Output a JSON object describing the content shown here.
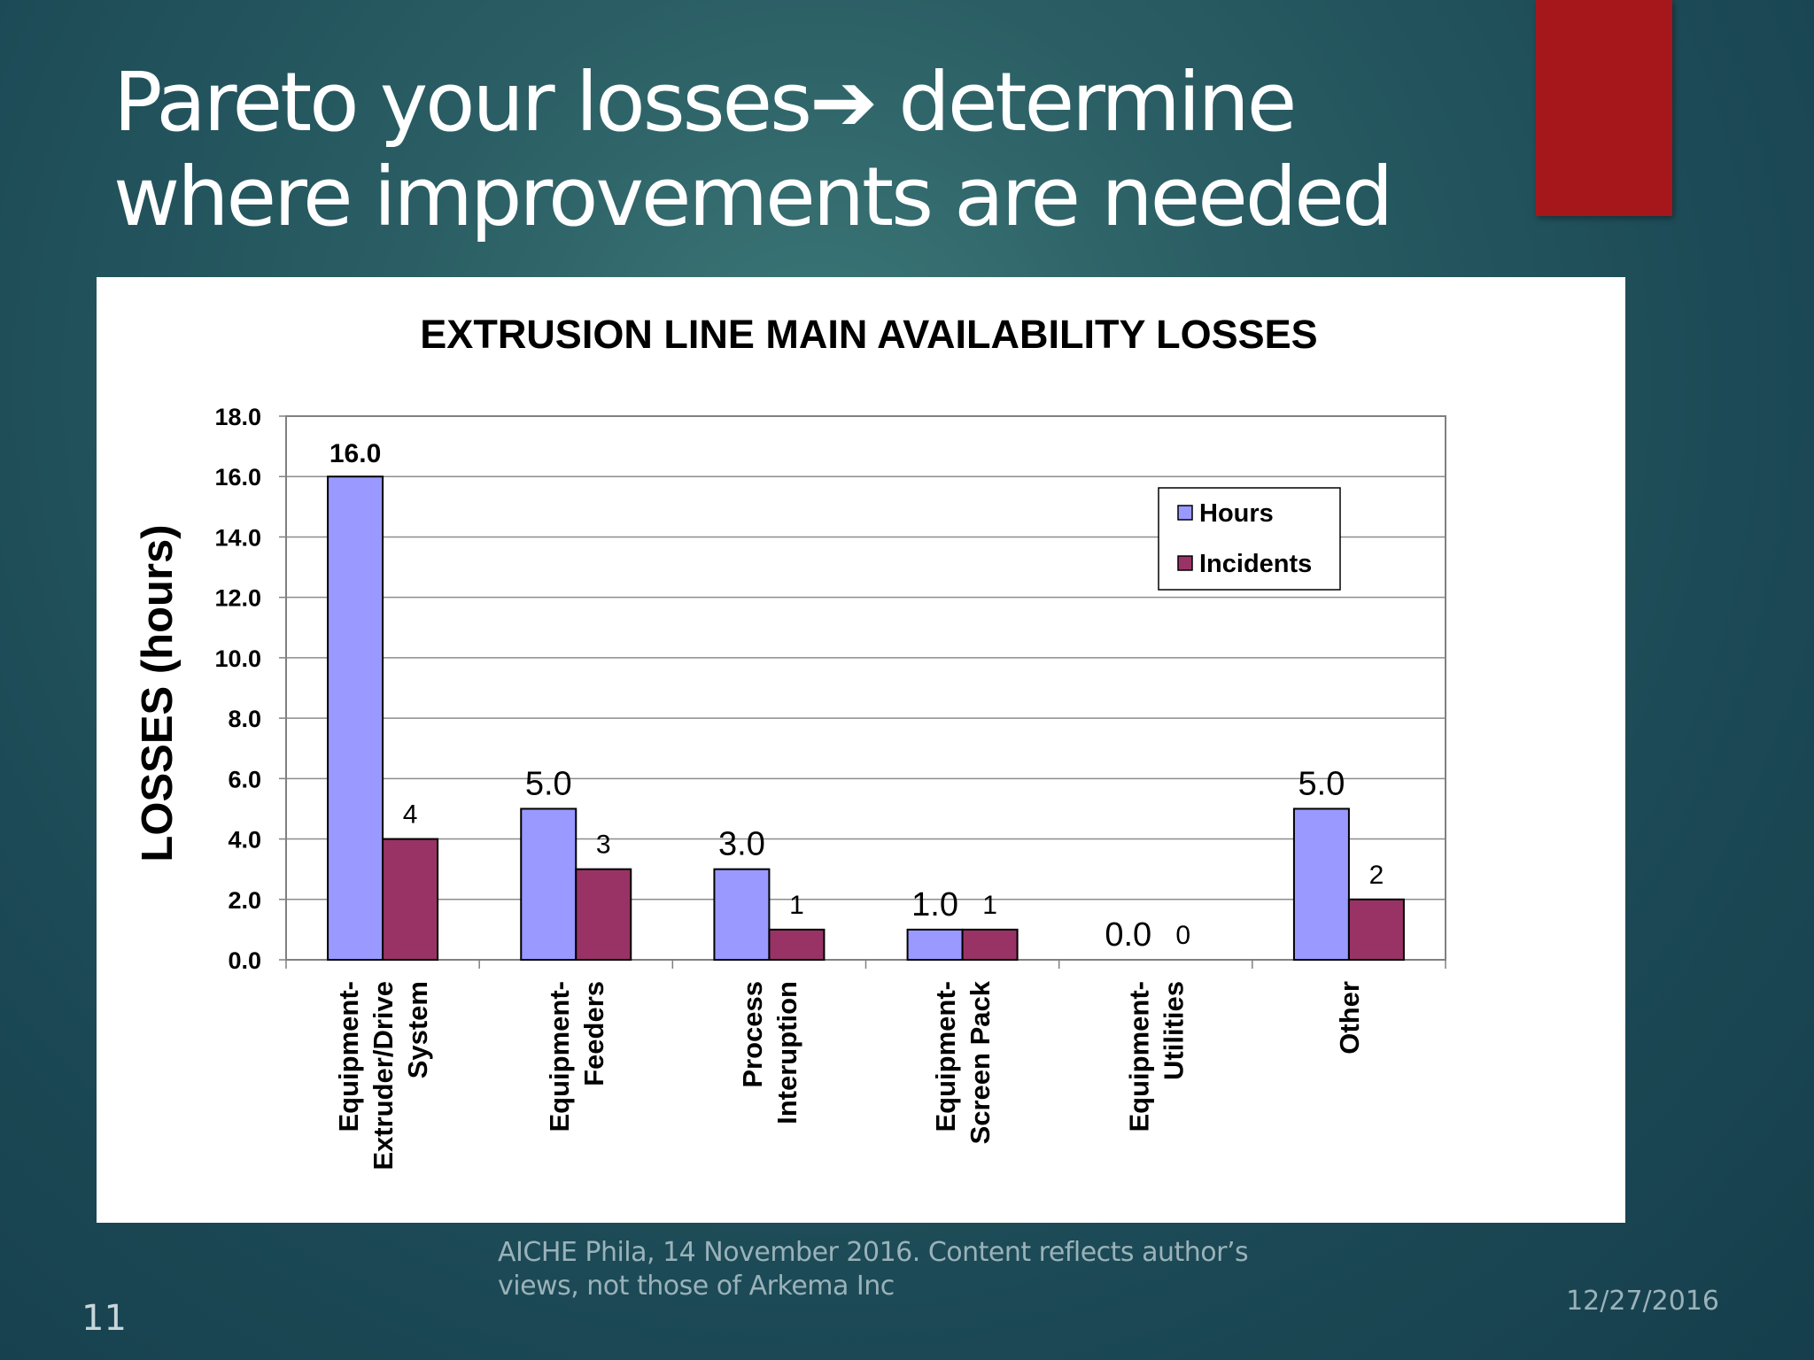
{
  "slide": {
    "title_line1": "Pareto your losses➔ determine",
    "title_line2": "where improvements are needed",
    "footer_line1": "AICHE Phila, 14 November 2016. Content reflects author’s",
    "footer_line2": "views, not those of Arkema Inc",
    "date": "12/27/2016",
    "slide_number": "11",
    "accent_color": "#a6171b"
  },
  "chart_data": {
    "type": "bar",
    "title": "EXTRUSION LINE MAIN AVAILABILITY LOSSES",
    "xlabel": "",
    "ylabel": "LOSSES (hours)",
    "ylim": [
      0,
      18
    ],
    "yticks": [
      "0.0",
      "2.0",
      "4.0",
      "6.0",
      "8.0",
      "10.0",
      "12.0",
      "14.0",
      "16.0",
      "18.0"
    ],
    "grid": true,
    "legend_position": "top-right",
    "categories": [
      [
        "Equipment-",
        "Extruder/Drive",
        "System"
      ],
      [
        "Equipment-",
        "Feeders"
      ],
      [
        "Process",
        "Interuption"
      ],
      [
        "Equipment-",
        "Screen Pack"
      ],
      [
        "Equipment-",
        "Utilities"
      ],
      [
        "Other"
      ]
    ],
    "series": [
      {
        "name": "Hours",
        "color": "#9999ff",
        "values": [
          16,
          5,
          3,
          1,
          0,
          5
        ],
        "labels": [
          "16.0",
          "5.0",
          "3.0",
          "1.0",
          "0.0",
          "5.0"
        ]
      },
      {
        "name": "Incidents",
        "color": "#993366",
        "values": [
          4,
          3,
          1,
          1,
          0,
          2
        ],
        "labels": [
          "4",
          "3",
          "1",
          "1",
          "0",
          "2"
        ]
      }
    ]
  }
}
